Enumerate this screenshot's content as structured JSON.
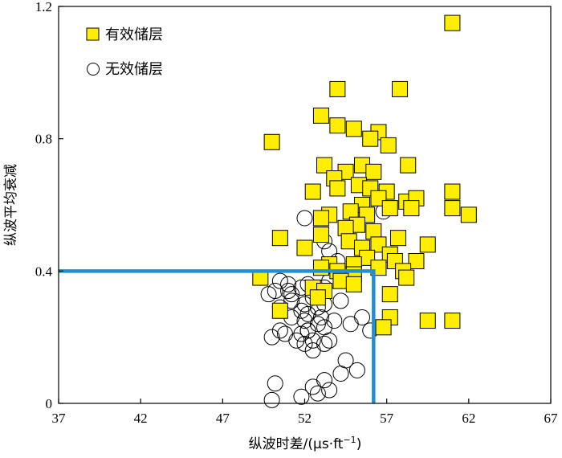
{
  "chart_data": {
    "type": "scatter",
    "xlabel_main": "纵波时差/(μs·ft",
    "xlabel_sup": "−1",
    "xlabel_end": ")",
    "ylabel": "纵波平均衰减",
    "xlim": [
      37,
      67
    ],
    "ylim": [
      0,
      1.2
    ],
    "x_ticks": [
      37,
      42,
      47,
      52,
      57,
      62,
      67
    ],
    "x_tick_labels": [
      "37",
      "42",
      "47",
      "52",
      "57",
      "62",
      "67"
    ],
    "y_ticks": [
      0,
      0.4,
      0.8,
      1.2
    ],
    "y_tick_labels": [
      "0",
      "0.4",
      "0.8",
      "1.2"
    ],
    "legend_position": "top-left",
    "colors": {
      "effective_fill": "#ffee00",
      "cutoff_line": "#1e90d8"
    },
    "cutoff_lines": {
      "x": 56.2,
      "y": 0.4
    },
    "series": [
      {
        "name": "有效储层",
        "marker": "square",
        "points": [
          [
            61,
            1.15
          ],
          [
            54,
            0.95
          ],
          [
            57.8,
            0.95
          ],
          [
            53,
            0.87
          ],
          [
            54,
            0.84
          ],
          [
            55,
            0.83
          ],
          [
            56.5,
            0.82
          ],
          [
            50,
            0.79
          ],
          [
            56,
            0.8
          ],
          [
            57.1,
            0.78
          ],
          [
            58.3,
            0.72
          ],
          [
            53.2,
            0.72
          ],
          [
            55.5,
            0.72
          ],
          [
            54.5,
            0.7
          ],
          [
            56.2,
            0.7
          ],
          [
            53.8,
            0.68
          ],
          [
            55.3,
            0.66
          ],
          [
            54,
            0.65
          ],
          [
            56,
            0.65
          ],
          [
            57,
            0.64
          ],
          [
            52.5,
            0.64
          ],
          [
            61,
            0.64
          ],
          [
            56.5,
            0.62
          ],
          [
            58.2,
            0.61
          ],
          [
            58.8,
            0.62
          ],
          [
            55.5,
            0.6
          ],
          [
            54.8,
            0.58
          ],
          [
            57.2,
            0.59
          ],
          [
            58.5,
            0.59
          ],
          [
            61,
            0.59
          ],
          [
            62,
            0.57
          ],
          [
            53.5,
            0.57
          ],
          [
            55.8,
            0.57
          ],
          [
            53,
            0.56
          ],
          [
            55.2,
            0.54
          ],
          [
            56.2,
            0.52
          ],
          [
            54.5,
            0.53
          ],
          [
            53,
            0.51
          ],
          [
            57.7,
            0.5
          ],
          [
            50.5,
            0.5
          ],
          [
            54.7,
            0.49
          ],
          [
            56.5,
            0.48
          ],
          [
            55.5,
            0.47
          ],
          [
            59.5,
            0.48
          ],
          [
            52,
            0.47
          ],
          [
            57.2,
            0.45
          ],
          [
            55.8,
            0.44
          ],
          [
            55,
            0.42
          ],
          [
            53.5,
            0.42
          ],
          [
            57.5,
            0.43
          ],
          [
            58.8,
            0.43
          ],
          [
            56.5,
            0.41
          ],
          [
            54,
            0.4
          ],
          [
            55,
            0.39
          ],
          [
            53,
            0.41
          ],
          [
            58,
            0.4
          ],
          [
            58.2,
            0.38
          ],
          [
            54.2,
            0.37
          ],
          [
            55,
            0.36
          ],
          [
            49.3,
            0.38
          ],
          [
            52.5,
            0.35
          ],
          [
            53.2,
            0.34
          ],
          [
            57.2,
            0.33
          ],
          [
            52.8,
            0.32
          ],
          [
            50.5,
            0.28
          ],
          [
            57.2,
            0.26
          ],
          [
            59.5,
            0.25
          ],
          [
            61,
            0.25
          ],
          [
            56.8,
            0.23
          ]
        ]
      },
      {
        "name": "无效储层",
        "marker": "circle",
        "points": [
          [
            52,
            0.56
          ],
          [
            56.8,
            0.58
          ],
          [
            53.2,
            0.49
          ],
          [
            53.5,
            0.46
          ],
          [
            54,
            0.43
          ],
          [
            53.2,
            0.41
          ],
          [
            50.5,
            0.37
          ],
          [
            51,
            0.36
          ],
          [
            51.8,
            0.35
          ],
          [
            52.2,
            0.36
          ],
          [
            52.8,
            0.34
          ],
          [
            53.2,
            0.35
          ],
          [
            53.5,
            0.37
          ],
          [
            50.2,
            0.34
          ],
          [
            51.2,
            0.33
          ],
          [
            52.5,
            0.32
          ],
          [
            49.8,
            0.33
          ],
          [
            51.2,
            0.31
          ],
          [
            52,
            0.3
          ],
          [
            52.8,
            0.29
          ],
          [
            53.2,
            0.3
          ],
          [
            54.2,
            0.31
          ],
          [
            50.5,
            0.29
          ],
          [
            51.8,
            0.28
          ],
          [
            52.2,
            0.27
          ],
          [
            53,
            0.26
          ],
          [
            51.2,
            0.26
          ],
          [
            52,
            0.25
          ],
          [
            52.8,
            0.24
          ],
          [
            53.2,
            0.23
          ],
          [
            53.8,
            0.25
          ],
          [
            55.5,
            0.26
          ],
          [
            56,
            0.22
          ],
          [
            52.2,
            0.22
          ],
          [
            51.8,
            0.21
          ],
          [
            50.5,
            0.22
          ],
          [
            51.5,
            0.19
          ],
          [
            52.5,
            0.19
          ],
          [
            53.5,
            0.19
          ],
          [
            54.8,
            0.24
          ],
          [
            50.8,
            0.21
          ],
          [
            52,
            0.18
          ],
          [
            53.2,
            0.18
          ],
          [
            50,
            0.2
          ],
          [
            52.5,
            0.16
          ],
          [
            54.5,
            0.13
          ],
          [
            55.2,
            0.1
          ],
          [
            54.2,
            0.09
          ],
          [
            53.2,
            0.07
          ],
          [
            52.5,
            0.05
          ],
          [
            50.2,
            0.06
          ],
          [
            53.5,
            0.04
          ],
          [
            52.8,
            0.03
          ],
          [
            51.8,
            0.02
          ],
          [
            50,
            0.01
          ],
          [
            52.2,
            0.22
          ],
          [
            51,
            0.34
          ]
        ]
      }
    ]
  }
}
